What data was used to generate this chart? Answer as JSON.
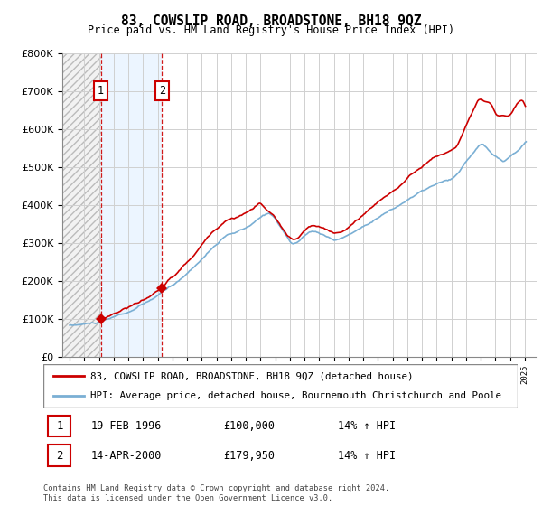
{
  "title": "83, COWSLIP ROAD, BROADSTONE, BH18 9QZ",
  "subtitle": "Price paid vs. HM Land Registry's House Price Index (HPI)",
  "hpi_label": "HPI: Average price, detached house, Bournemouth Christchurch and Poole",
  "property_label": "83, COWSLIP ROAD, BROADSTONE, BH18 9QZ (detached house)",
  "footer": "Contains HM Land Registry data © Crown copyright and database right 2024.\nThis data is licensed under the Open Government Licence v3.0.",
  "ylim": [
    0,
    800000
  ],
  "yticks": [
    0,
    100000,
    200000,
    300000,
    400000,
    500000,
    600000,
    700000,
    800000
  ],
  "sales": [
    {
      "date": 1996.12,
      "price": 100000,
      "label": "1"
    },
    {
      "date": 2000.29,
      "price": 179950,
      "label": "2"
    }
  ],
  "sale_dates_text": [
    "19-FEB-1996",
    "14-APR-2000"
  ],
  "sale_prices_text": [
    "£100,000",
    "£179,950"
  ],
  "sale_hpi_text": [
    "14% ↑ HPI",
    "14% ↑ HPI"
  ],
  "property_color": "#cc0000",
  "hpi_color": "#7aafd4",
  "vline_color": "#cc0000",
  "xlim": [
    1993.5,
    2025.8
  ],
  "grid_color": "#d0d0d0",
  "hatch_color": "#dce8f5",
  "hatch_left_color": "#e8e8e8"
}
